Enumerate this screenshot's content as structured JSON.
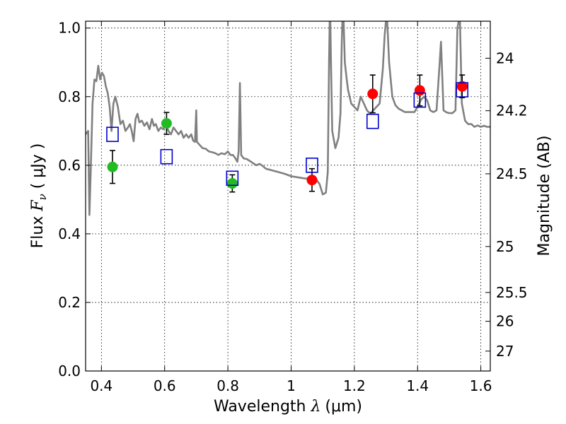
{
  "chart_data": {
    "type": "scatter",
    "xlabel": {
      "prefix": "Wavelength  ",
      "symbol": "λ",
      "unit": "(μm)"
    },
    "ylabel": {
      "prefix": "Flux  ",
      "symbol": "F",
      "sub": "ν",
      "unit": "  ( μJy )"
    },
    "y2label": "Magnitude (AB)",
    "xlim": [
      0.35,
      1.63
    ],
    "ylim": [
      0.0,
      1.02
    ],
    "grid": true,
    "x_ticks": [
      0.4,
      0.6,
      0.8,
      1.0,
      1.2,
      1.4,
      1.6
    ],
    "x_tick_labels": [
      "0.4",
      "0.6",
      "0.8",
      "1",
      "1.2",
      "1.4",
      "1.6"
    ],
    "y_ticks": [
      0.0,
      0.2,
      0.4,
      0.6,
      0.8,
      1.0
    ],
    "y_tick_labels": [
      "0.0",
      "0.2",
      "0.4",
      "0.6",
      "0.8",
      "1.0"
    ],
    "y2_ticks": [
      {
        "label": "24",
        "flux": 0.912
      },
      {
        "label": "24.2",
        "flux": 0.759
      },
      {
        "label": "24.5",
        "flux": 0.575
      },
      {
        "label": "25",
        "flux": 0.363
      },
      {
        "label": "25.5",
        "flux": 0.229
      },
      {
        "label": "26",
        "flux": 0.145
      },
      {
        "label": "27",
        "flux": 0.058
      }
    ],
    "series": [
      {
        "name": "green observed points",
        "color": "#22bb22",
        "marker": "circle",
        "points": [
          {
            "x": 0.435,
            "y": 0.595,
            "err": 0.048
          },
          {
            "x": 0.606,
            "y": 0.722,
            "err": 0.032
          },
          {
            "x": 0.814,
            "y": 0.547,
            "err": 0.025
          }
        ]
      },
      {
        "name": "red observed points",
        "color": "#ff0000",
        "marker": "circle",
        "points": [
          {
            "x": 1.066,
            "y": 0.557,
            "err": 0.033
          },
          {
            "x": 1.258,
            "y": 0.808,
            "err": 0.055
          },
          {
            "x": 1.407,
            "y": 0.818,
            "err": 0.045
          },
          {
            "x": 1.541,
            "y": 0.83,
            "err": 0.033
          }
        ]
      },
      {
        "name": "model photometry",
        "color": "#0000cc",
        "marker": "open-square",
        "points": [
          {
            "x": 0.435,
            "y": 0.69
          },
          {
            "x": 0.606,
            "y": 0.625
          },
          {
            "x": 0.814,
            "y": 0.562
          },
          {
            "x": 1.066,
            "y": 0.6
          },
          {
            "x": 1.258,
            "y": 0.728
          },
          {
            "x": 1.407,
            "y": 0.79
          },
          {
            "x": 1.541,
            "y": 0.82
          }
        ]
      }
    ],
    "model_spectrum": {
      "color": "#808080",
      "points": [
        [
          0.35,
          0.69
        ],
        [
          0.358,
          0.7
        ],
        [
          0.362,
          0.455
        ],
        [
          0.366,
          0.58
        ],
        [
          0.372,
          0.78
        ],
        [
          0.378,
          0.85
        ],
        [
          0.384,
          0.845
        ],
        [
          0.39,
          0.89
        ],
        [
          0.396,
          0.85
        ],
        [
          0.402,
          0.87
        ],
        [
          0.408,
          0.86
        ],
        [
          0.414,
          0.83
        ],
        [
          0.42,
          0.81
        ],
        [
          0.426,
          0.77
        ],
        [
          0.432,
          0.7
        ],
        [
          0.438,
          0.78
        ],
        [
          0.444,
          0.8
        ],
        [
          0.452,
          0.77
        ],
        [
          0.46,
          0.72
        ],
        [
          0.468,
          0.73
        ],
        [
          0.476,
          0.7
        ],
        [
          0.484,
          0.71
        ],
        [
          0.49,
          0.72
        ],
        [
          0.496,
          0.7
        ],
        [
          0.502,
          0.67
        ],
        [
          0.508,
          0.735
        ],
        [
          0.514,
          0.75
        ],
        [
          0.52,
          0.725
        ],
        [
          0.528,
          0.73
        ],
        [
          0.536,
          0.715
        ],
        [
          0.544,
          0.725
        ],
        [
          0.552,
          0.705
        ],
        [
          0.56,
          0.735
        ],
        [
          0.566,
          0.715
        ],
        [
          0.572,
          0.72
        ],
        [
          0.58,
          0.7
        ],
        [
          0.588,
          0.71
        ],
        [
          0.596,
          0.705
        ],
        [
          0.604,
          0.72
        ],
        [
          0.612,
          0.7
        ],
        [
          0.62,
          0.69
        ],
        [
          0.628,
          0.71
        ],
        [
          0.636,
          0.7
        ],
        [
          0.644,
          0.69
        ],
        [
          0.652,
          0.7
        ],
        [
          0.66,
          0.68
        ],
        [
          0.668,
          0.69
        ],
        [
          0.676,
          0.68
        ],
        [
          0.684,
          0.69
        ],
        [
          0.69,
          0.672
        ],
        [
          0.696,
          0.668
        ],
        [
          0.7,
          0.76
        ],
        [
          0.702,
          0.668
        ],
        [
          0.71,
          0.66
        ],
        [
          0.72,
          0.65
        ],
        [
          0.73,
          0.648
        ],
        [
          0.74,
          0.64
        ],
        [
          0.75,
          0.638
        ],
        [
          0.76,
          0.635
        ],
        [
          0.77,
          0.63
        ],
        [
          0.78,
          0.635
        ],
        [
          0.79,
          0.632
        ],
        [
          0.8,
          0.64
        ],
        [
          0.808,
          0.63
        ],
        [
          0.816,
          0.63
        ],
        [
          0.824,
          0.62
        ],
        [
          0.83,
          0.61
        ],
        [
          0.834,
          0.64
        ],
        [
          0.838,
          0.84
        ],
        [
          0.842,
          0.63
        ],
        [
          0.85,
          0.62
        ],
        [
          0.86,
          0.618
        ],
        [
          0.87,
          0.612
        ],
        [
          0.88,
          0.606
        ],
        [
          0.89,
          0.6
        ],
        [
          0.9,
          0.604
        ],
        [
          0.91,
          0.598
        ],
        [
          0.92,
          0.59
        ],
        [
          0.94,
          0.585
        ],
        [
          0.96,
          0.58
        ],
        [
          0.98,
          0.575
        ],
        [
          1.0,
          0.568
        ],
        [
          1.02,
          0.565
        ],
        [
          1.04,
          0.562
        ],
        [
          1.06,
          0.56
        ],
        [
          1.07,
          0.56
        ],
        [
          1.08,
          0.558
        ],
        [
          1.09,
          0.545
        ],
        [
          1.1,
          0.515
        ],
        [
          1.11,
          0.52
        ],
        [
          1.116,
          0.58
        ],
        [
          1.12,
          0.9
        ],
        [
          1.122,
          1.02
        ],
        [
          1.124,
          1.02
        ],
        [
          1.126,
          0.9
        ],
        [
          1.13,
          0.7
        ],
        [
          1.14,
          0.65
        ],
        [
          1.15,
          0.68
        ],
        [
          1.156,
          0.75
        ],
        [
          1.16,
          0.95
        ],
        [
          1.162,
          1.02
        ],
        [
          1.166,
          1.02
        ],
        [
          1.17,
          0.9
        ],
        [
          1.176,
          0.85
        ],
        [
          1.18,
          0.82
        ],
        [
          1.19,
          0.78
        ],
        [
          1.2,
          0.77
        ],
        [
          1.21,
          0.76
        ],
        [
          1.22,
          0.8
        ],
        [
          1.23,
          0.78
        ],
        [
          1.24,
          0.76
        ],
        [
          1.25,
          0.75
        ],
        [
          1.26,
          0.76
        ],
        [
          1.27,
          0.77
        ],
        [
          1.28,
          0.78
        ],
        [
          1.29,
          0.88
        ],
        [
          1.296,
          0.98
        ],
        [
          1.3,
          1.02
        ],
        [
          1.304,
          1.02
        ],
        [
          1.31,
          0.9
        ],
        [
          1.32,
          0.8
        ],
        [
          1.33,
          0.775
        ],
        [
          1.34,
          0.765
        ],
        [
          1.35,
          0.76
        ],
        [
          1.36,
          0.755
        ],
        [
          1.37,
          0.755
        ],
        [
          1.38,
          0.755
        ],
        [
          1.39,
          0.755
        ],
        [
          1.4,
          0.77
        ],
        [
          1.41,
          0.79
        ],
        [
          1.42,
          0.8
        ],
        [
          1.43,
          0.79
        ],
        [
          1.44,
          0.76
        ],
        [
          1.45,
          0.755
        ],
        [
          1.46,
          0.76
        ],
        [
          1.47,
          0.9
        ],
        [
          1.474,
          0.96
        ],
        [
          1.478,
          0.86
        ],
        [
          1.482,
          0.76
        ],
        [
          1.49,
          0.755
        ],
        [
          1.5,
          0.752
        ],
        [
          1.51,
          0.752
        ],
        [
          1.52,
          0.76
        ],
        [
          1.526,
          1.0
        ],
        [
          1.53,
          1.02
        ],
        [
          1.534,
          1.02
        ],
        [
          1.54,
          0.78
        ],
        [
          1.55,
          0.73
        ],
        [
          1.56,
          0.72
        ],
        [
          1.57,
          0.72
        ],
        [
          1.58,
          0.712
        ],
        [
          1.59,
          0.716
        ],
        [
          1.6,
          0.712
        ],
        [
          1.61,
          0.715
        ],
        [
          1.62,
          0.712
        ],
        [
          1.63,
          0.712
        ]
      ]
    }
  }
}
